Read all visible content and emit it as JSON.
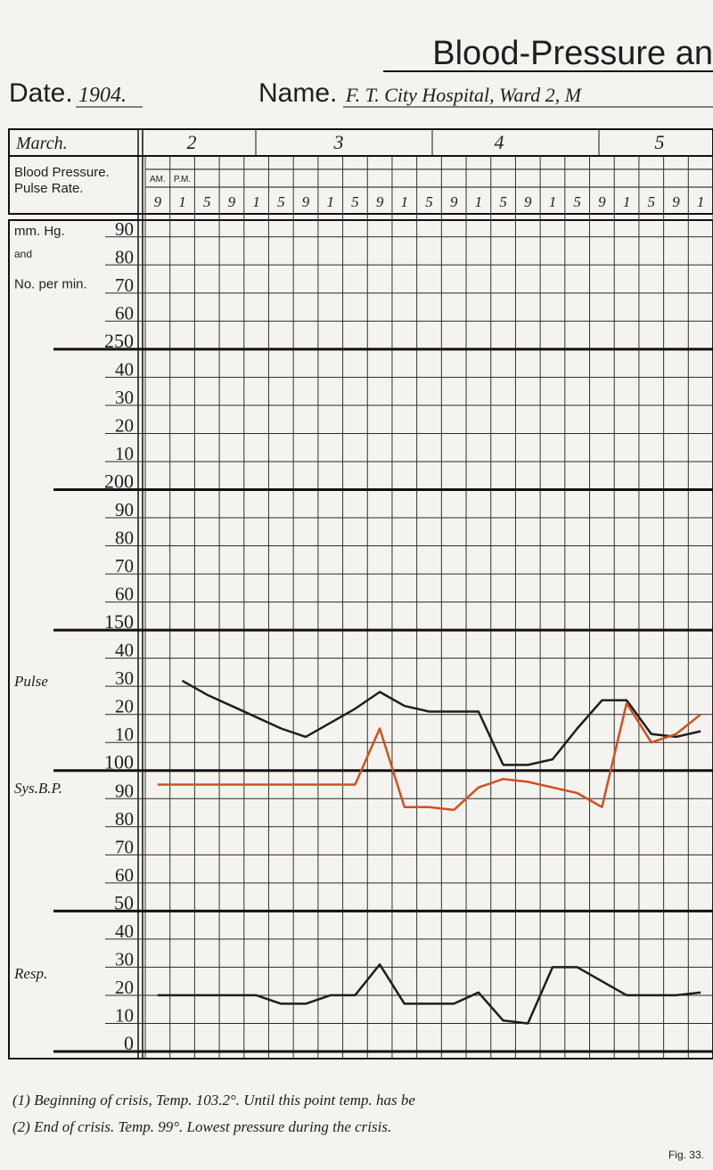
{
  "header": {
    "title": "Blood-Pressure an",
    "date_label": "Date.",
    "date": "1904.",
    "name_label": "Name.",
    "name": "F. T.   City Hospital, Ward 2, M"
  },
  "chart_data": {
    "type": "line",
    "month": "March.",
    "row_labels": [
      "Blood Pressure.",
      "Pulse Rate."
    ],
    "am_label": "AM.",
    "pm_label": "P.M.",
    "days": [
      "2",
      "3",
      "4",
      "5"
    ],
    "axis_labels": [
      "mm. Hg.",
      "and",
      "No. per min."
    ],
    "categories": [
      "9",
      "1",
      "5",
      "9",
      "1",
      "5",
      "9",
      "1",
      "5",
      "9",
      "1",
      "5",
      "9",
      "1",
      "5",
      "9",
      "1",
      "5",
      "9",
      "1",
      "5",
      "9",
      "1"
    ],
    "series": [
      {
        "name": "Pulse",
        "color": "#1e1e1e",
        "values": [
          null,
          132,
          127,
          123,
          119,
          115,
          112,
          117,
          122,
          128,
          123,
          121,
          121,
          121,
          102,
          102,
          104,
          115,
          125,
          125,
          113,
          112,
          114
        ]
      },
      {
        "name": "Sys.B.P.",
        "color": "#d2501f",
        "values": [
          95,
          95,
          95,
          95,
          95,
          95,
          95,
          95,
          95,
          115,
          87,
          87,
          86,
          94,
          97,
          96,
          94,
          92,
          87,
          124,
          110,
          113,
          120
        ]
      },
      {
        "name": "Resp.",
        "color": "#1e1e1e",
        "values": [
          20,
          20,
          20,
          20,
          20,
          17,
          17,
          20,
          20,
          31,
          17,
          17,
          17,
          21,
          11,
          10,
          30,
          30,
          25,
          20,
          20,
          20,
          21
        ]
      }
    ],
    "ylim": [
      0,
      295
    ],
    "yticks": [
      {
        "value": 290,
        "label": "90"
      },
      {
        "value": 280,
        "label": "80"
      },
      {
        "value": 270,
        "label": "70"
      },
      {
        "value": 260,
        "label": "60"
      },
      250,
      {
        "value": 240,
        "label": "40"
      },
      {
        "value": 230,
        "label": "30"
      },
      {
        "value": 220,
        "label": "20"
      },
      {
        "value": 210,
        "label": "10"
      },
      200,
      {
        "value": 190,
        "label": "90"
      },
      {
        "value": 180,
        "label": "80"
      },
      {
        "value": 170,
        "label": "70"
      },
      {
        "value": 160,
        "label": "60"
      },
      150,
      {
        "value": 140,
        "label": "40"
      },
      {
        "value": 130,
        "label": "30"
      },
      {
        "value": 120,
        "label": "20"
      },
      {
        "value": 110,
        "label": "10"
      },
      100,
      90,
      80,
      70,
      60,
      50,
      40,
      30,
      20,
      10,
      0
    ],
    "grid": true
  },
  "footnotes": [
    "(1) Beginning of crisis, Temp. 103.2°. Until this point temp. has be",
    "(2) End of crisis. Temp. 99°. Lowest pressure during the crisis."
  ],
  "figure": "Fig. 33."
}
